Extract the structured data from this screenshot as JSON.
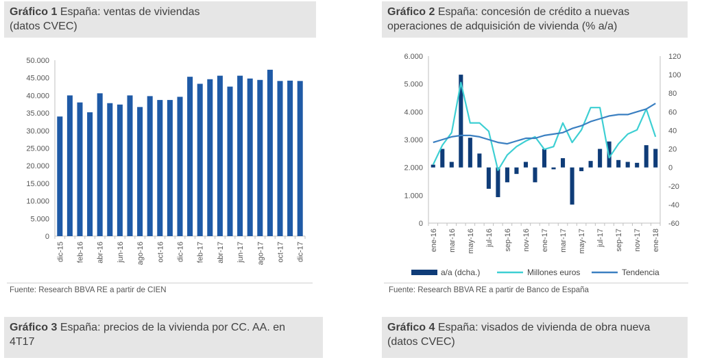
{
  "panels": [
    {
      "num": "Gráfico 1",
      "title": "España: ventas de viviendas (datos CVEC)",
      "title_l1": "España: ventas de viviendas",
      "title_l2": "(datos CVEC)"
    },
    {
      "num": "Gráfico 2",
      "title": "España: concesión de crédito a nuevas operaciones de adquisición de vivienda (% a/a)",
      "title_l1": "España: concesión de crédito a nuevas",
      "title_l2": "operaciones de adquisición de vivienda (% a/a)"
    },
    {
      "num": "Gráfico 3",
      "title": "España: precios de la vivienda por CC. AA. en 4T17",
      "title_l1": "España: precios de la vivienda por CC. AA. en",
      "title_l2": "4T17"
    },
    {
      "num": "Gráfico 4",
      "title": "España: visados de vivienda de obra nueva (datos CVEC)",
      "title_l1": "España: visados de vivienda de obra nueva",
      "title_l2": "(datos CVEC)"
    }
  ],
  "sources": {
    "chart1": "Fuente:  Research  BBVA RE a partir de CIEN",
    "chart2": "Fuente:  Research  BBVA RE a partir de Banco de España"
  },
  "colors": {
    "dark_blue": "#0f3c78",
    "bar_blue": "#1f5aa6",
    "light_blue": "#3dcfd3",
    "trend_blue": "#3a7fc1",
    "axis": "#bfbfbf",
    "grid": "#d9d9d9"
  },
  "chart_data": [
    {
      "type": "bar",
      "title": "España: ventas de viviendas (datos CVEC)",
      "categories": [
        "dic-15",
        "ene-16",
        "feb-16",
        "mar-16",
        "abr-16",
        "may-16",
        "jun-16",
        "jul-16",
        "ago-16",
        "sep-16",
        "oct-16",
        "nov-16",
        "dic-16",
        "ene-17",
        "feb-17",
        "mar-17",
        "abr-17",
        "may-17",
        "jun-17",
        "jul-17",
        "ago-17",
        "sep-17",
        "oct-17",
        "nov-17",
        "dic-17"
      ],
      "tick_labels": [
        "dic-15",
        "feb-16",
        "abr-16",
        "jun-16",
        "ago-16",
        "oct-16",
        "dic-16",
        "feb-17",
        "abr-17",
        "jun-17",
        "ago-17",
        "oct-17",
        "dic-17"
      ],
      "values": [
        34000,
        40000,
        38000,
        35200,
        40600,
        37800,
        37400,
        40000,
        36700,
        39800,
        38700,
        38700,
        39600,
        45300,
        43300,
        44600,
        45600,
        42500,
        45600,
        44800,
        44400,
        47300,
        44100,
        44200,
        44100
      ],
      "ylim": [
        0,
        50000
      ],
      "y_ticks": [
        "0",
        "5.000",
        "10.000",
        "15.000",
        "20.000",
        "25.000",
        "30.000",
        "35.000",
        "40.000",
        "45.000",
        "50.000"
      ],
      "grid": false
    },
    {
      "type": "bar+line",
      "title": "España: concesión de crédito a nuevas operaciones de adquisición de vivienda (% a/a)",
      "categories": [
        "ene-16",
        "feb-16",
        "mar-16",
        "abr-16",
        "may-16",
        "jun-16",
        "jul-16",
        "ago-16",
        "sep-16",
        "oct-16",
        "nov-16",
        "dic-16",
        "ene-17",
        "feb-17",
        "mar-17",
        "abr-17",
        "may-17",
        "jun-17",
        "jul-17",
        "ago-17",
        "sep-17",
        "oct-17",
        "nov-17",
        "dic-17",
        "ene-18"
      ],
      "tick_labels": [
        "ene-16",
        "mar-16",
        "may-16",
        "jul-16",
        "sep-16",
        "nov-16",
        "ene-17",
        "mar-17",
        "may-17",
        "jul-17",
        "sep-17",
        "nov-17",
        "ene-18"
      ],
      "left_axis": {
        "ylim": [
          0,
          6000
        ],
        "ticks": [
          "0",
          "1.000",
          "2.000",
          "3.000",
          "4.000",
          "5.000",
          "6.000"
        ]
      },
      "right_axis": {
        "ylim": [
          -60,
          120
        ],
        "ticks": [
          "-60",
          "-40",
          "-20",
          "0",
          "20",
          "40",
          "60",
          "80",
          "100",
          "120"
        ]
      },
      "series": [
        {
          "name": "a/a (dcha.)",
          "type": "bar",
          "axis": "right",
          "values": [
            3,
            20,
            6,
            100,
            32,
            15,
            -23,
            -32,
            -16,
            -7,
            6,
            -16,
            20,
            -2,
            10,
            -40,
            -4,
            7,
            20,
            28,
            8,
            6,
            5,
            24,
            20
          ]
        },
        {
          "name": "Millones euros",
          "type": "line",
          "axis": "left",
          "values": [
            2100,
            2800,
            3250,
            5050,
            3600,
            3600,
            3300,
            1900,
            2450,
            2750,
            2950,
            3100,
            2650,
            2750,
            3600,
            2900,
            3350,
            4150,
            4150,
            2350,
            2850,
            3200,
            3350,
            4100,
            3100
          ]
        },
        {
          "name": "Tendencia",
          "type": "line",
          "axis": "left",
          "values": [
            2900,
            3000,
            3100,
            3150,
            3150,
            3100,
            3000,
            2900,
            2850,
            2950,
            3050,
            3050,
            3150,
            3200,
            3250,
            3400,
            3500,
            3650,
            3750,
            3850,
            3900,
            3900,
            4000,
            4100,
            4300
          ]
        }
      ],
      "legend_position": "bottom",
      "grid": false
    }
  ]
}
